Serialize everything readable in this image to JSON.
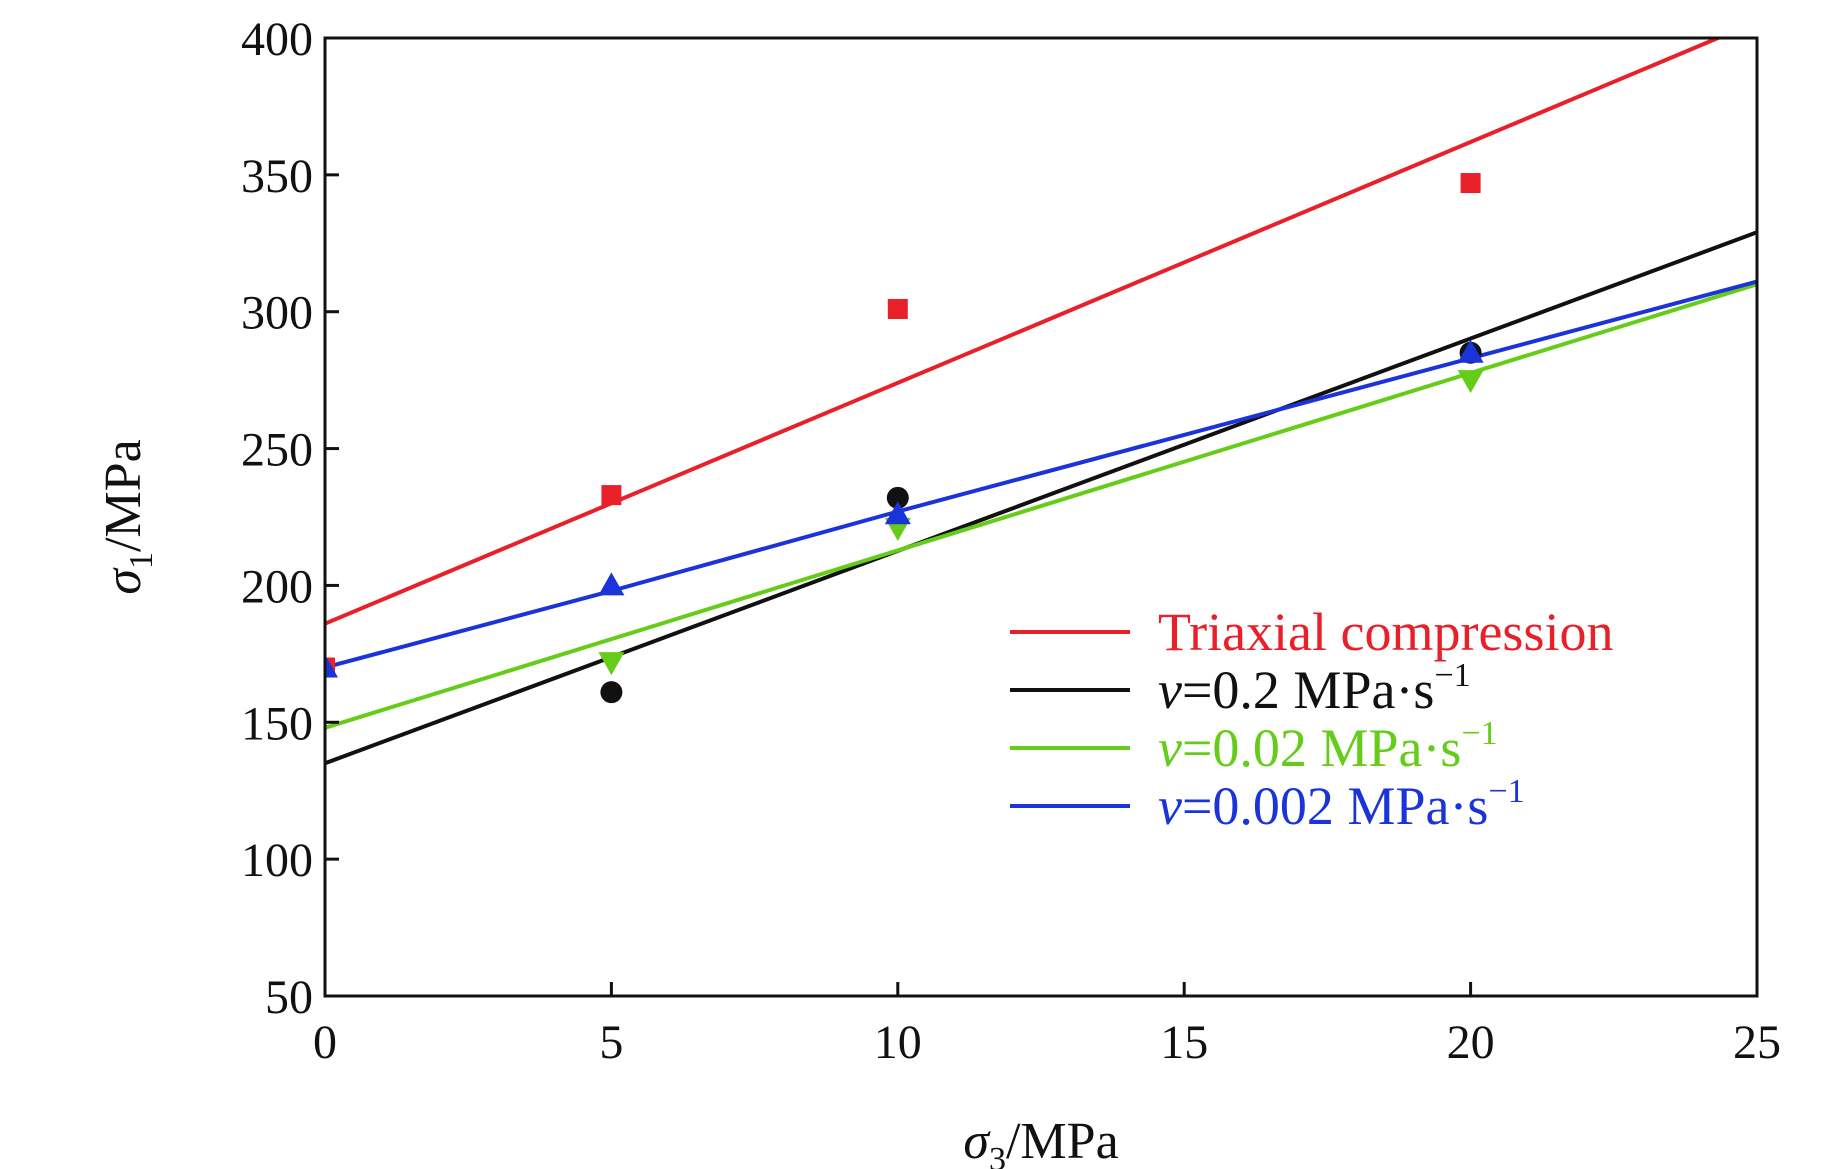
{
  "chart_data": {
    "type": "scatter",
    "xlabel": {
      "symbol": "σ",
      "sub": "3",
      "unit": "/MPa"
    },
    "ylabel": {
      "symbol": "σ",
      "sub": "1",
      "unit": "/MPa"
    },
    "xlim": [
      0,
      25
    ],
    "ylim": [
      50,
      400
    ],
    "xticks": [
      0,
      5,
      10,
      15,
      20,
      25
    ],
    "yticks": [
      50,
      100,
      150,
      200,
      250,
      300,
      350,
      400
    ],
    "grid": false,
    "legend_position": "lower-right",
    "series": [
      {
        "name": {
          "prefix": "",
          "text": "Triaxial compression",
          "sup": ""
        },
        "color": "#e8202a",
        "marker": "square",
        "points": [
          [
            0,
            170
          ],
          [
            5,
            233
          ],
          [
            10,
            301
          ],
          [
            20,
            347
          ]
        ],
        "fit": [
          [
            0,
            186
          ],
          [
            25,
            406
          ]
        ]
      },
      {
        "name": {
          "prefix": "v",
          "text": "=0.2 MPa·s",
          "sup": "−1"
        },
        "color": "#111111",
        "marker": "circle",
        "points": [
          [
            5,
            161
          ],
          [
            10,
            232
          ],
          [
            20,
            285
          ]
        ],
        "fit": [
          [
            0,
            135
          ],
          [
            25,
            329
          ]
        ]
      },
      {
        "name": {
          "prefix": "v",
          "text": "=0.02 MPa·s",
          "sup": "−1"
        },
        "color": "#66cc1a",
        "marker": "triangle-down",
        "points": [
          [
            5,
            172
          ],
          [
            10,
            221
          ],
          [
            20,
            275
          ]
        ],
        "fit": [
          [
            0,
            148
          ],
          [
            25,
            310
          ]
        ]
      },
      {
        "name": {
          "prefix": "v",
          "text": "=0.002 MPa·s",
          "sup": "−1"
        },
        "color": "#1a34d9",
        "marker": "triangle-up",
        "points": [
          [
            0,
            170
          ],
          [
            5,
            200
          ],
          [
            10,
            226
          ],
          [
            20,
            285
          ]
        ],
        "fit": [
          [
            0,
            170
          ],
          [
            5,
            198
          ],
          [
            10,
            227
          ],
          [
            25,
            311
          ]
        ]
      }
    ]
  }
}
